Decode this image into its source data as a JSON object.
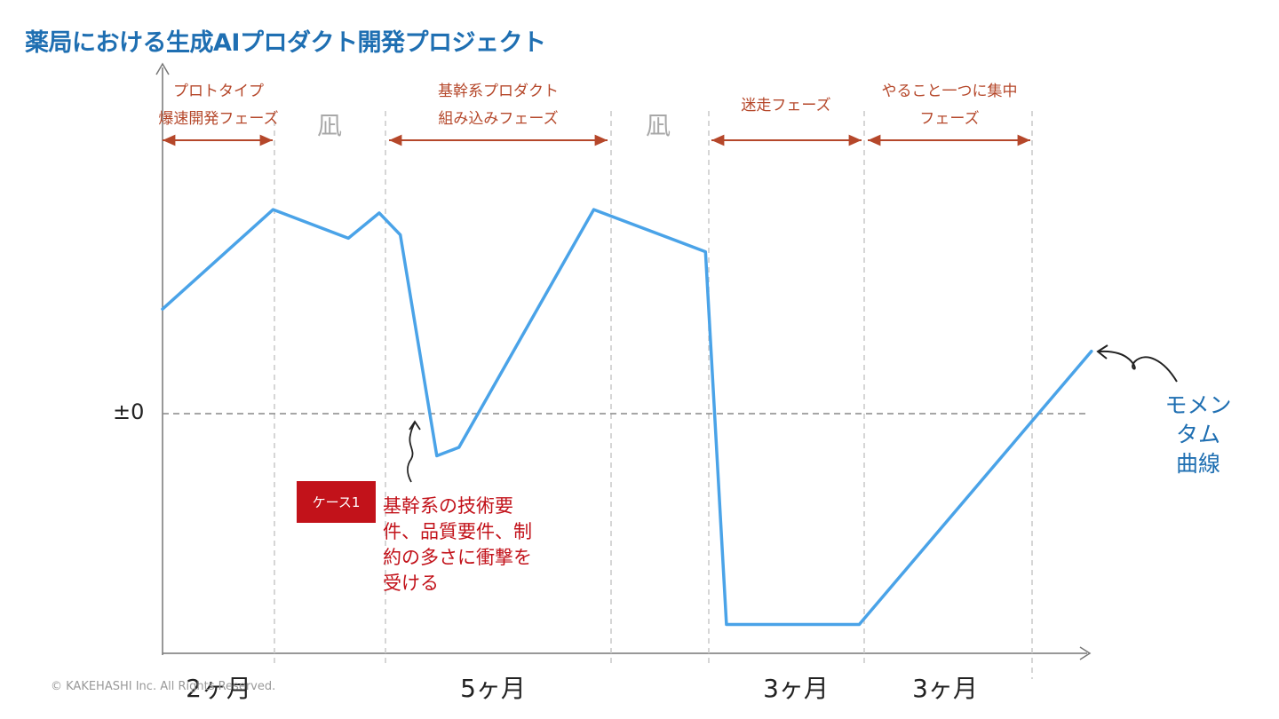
{
  "title": "薬局における生成AIプロダクト開発プロジェクト",
  "phases": [
    {
      "label": "プロトタイプ\n爆速開発フェーズ"
    },
    {
      "label": "基幹系プロダクト\n組み込みフェーズ"
    },
    {
      "label": "迷走フェーズ"
    },
    {
      "label": "やること一つに集中\nフェーズ"
    }
  ],
  "nagi_label": "凪",
  "durations": [
    "2ヶ月",
    "5ヶ月",
    "3ヶ月",
    "3ヶ月"
  ],
  "case_badge": "ケース1",
  "case_note": "基幹系の技術要件、品質要件、制約の多さに衝撃を受ける",
  "momentum_label": "モメンタム\n曲線",
  "copyright": "© KAKEHASHI Inc. All Rights Reserved.",
  "colors": {
    "title": "#1f6fb2",
    "curve": "#4aa3e8",
    "phase_text": "#b5472a",
    "phase_arrow": "#b5472a",
    "case": "#c2121a",
    "nagi": "#a8a8a8"
  },
  "chart_data": {
    "type": "line",
    "xlabel": "",
    "ylabel": "",
    "y_reference_label": "±0",
    "x_unit": "months",
    "series": [
      {
        "name": "モメンタム曲線",
        "points": [
          {
            "x": 0.0,
            "y": 0.62
          },
          {
            "x": 1.0,
            "y": 1.21
          },
          {
            "x": 1.68,
            "y": 1.04
          },
          {
            "x": 1.96,
            "y": 1.19
          },
          {
            "x": 2.15,
            "y": 1.06
          },
          {
            "x": 2.48,
            "y": -0.25
          },
          {
            "x": 2.68,
            "y": -0.2
          },
          {
            "x": 3.9,
            "y": 1.21
          },
          {
            "x": 4.91,
            "y": 0.96
          },
          {
            "x": 5.1,
            "y": -1.25
          },
          {
            "x": 6.3,
            "y": -1.25
          },
          {
            "x": 8.4,
            "y": 0.37
          }
        ]
      }
    ],
    "reference_line": {
      "y": 0,
      "style": "dashed"
    }
  }
}
